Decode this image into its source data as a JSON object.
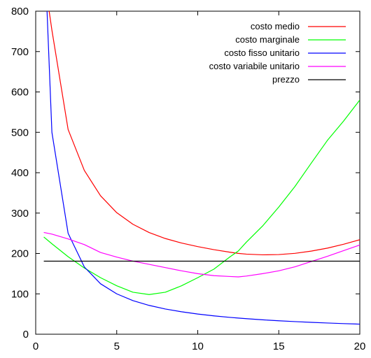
{
  "chart_data": {
    "type": "line",
    "xlim": [
      0,
      20
    ],
    "ylim": [
      0,
      800
    ],
    "x_ticks": [
      0,
      5,
      10,
      15,
      20
    ],
    "y_ticks": [
      0,
      100,
      200,
      300,
      400,
      500,
      600,
      700,
      800
    ],
    "grid": false,
    "legend_position": "top-right",
    "x": [
      0.5,
      1,
      2,
      3,
      4,
      5,
      6,
      7,
      8,
      9,
      10,
      11,
      12,
      12.5,
      13,
      14,
      15,
      16,
      17,
      18,
      19,
      20
    ],
    "series": [
      {
        "name": "costo medio",
        "color": "#ff0000",
        "values": [
          891.5,
          753,
          507,
          405.7,
          343,
          301,
          272.3,
          251.9,
          237,
          225.8,
          217,
          209.4,
          203,
          200.2,
          198.4,
          196.6,
          197.3,
          200.3,
          205.8,
          213.2,
          222.8,
          234
        ]
      },
      {
        "name": "costo marginale",
        "color": "#00ff00",
        "values": [
          240.8,
          224,
          192,
          164,
          140,
          120,
          104,
          98.3,
          104,
          120,
          140,
          161.3,
          192,
          206,
          228,
          268,
          315,
          366,
          423.5,
          480,
          528,
          580
        ]
      },
      {
        "name": "costo fisso unitario",
        "color": "#0000ff",
        "values": [
          1000,
          500,
          250,
          166.7,
          125,
          100,
          83.3,
          71.4,
          62.5,
          55.6,
          50,
          45.5,
          41.7,
          40,
          38.5,
          35.7,
          33.3,
          31.3,
          29.4,
          27.8,
          26.3,
          25
        ]
      },
      {
        "name": "costo variabile unitario",
        "color": "#ff00ff",
        "values": [
          252,
          248,
          236,
          222,
          202.5,
          191,
          181,
          173,
          165,
          157,
          150,
          145,
          143,
          142,
          144,
          150,
          157,
          167,
          180,
          193,
          207,
          221
        ]
      },
      {
        "name": "prezzo",
        "color": "#000000",
        "values": [
          181,
          181,
          181,
          181,
          181,
          181,
          181,
          181,
          181,
          181,
          181,
          181,
          181,
          181,
          181,
          181,
          181,
          181,
          181,
          181,
          181,
          181
        ]
      }
    ]
  }
}
